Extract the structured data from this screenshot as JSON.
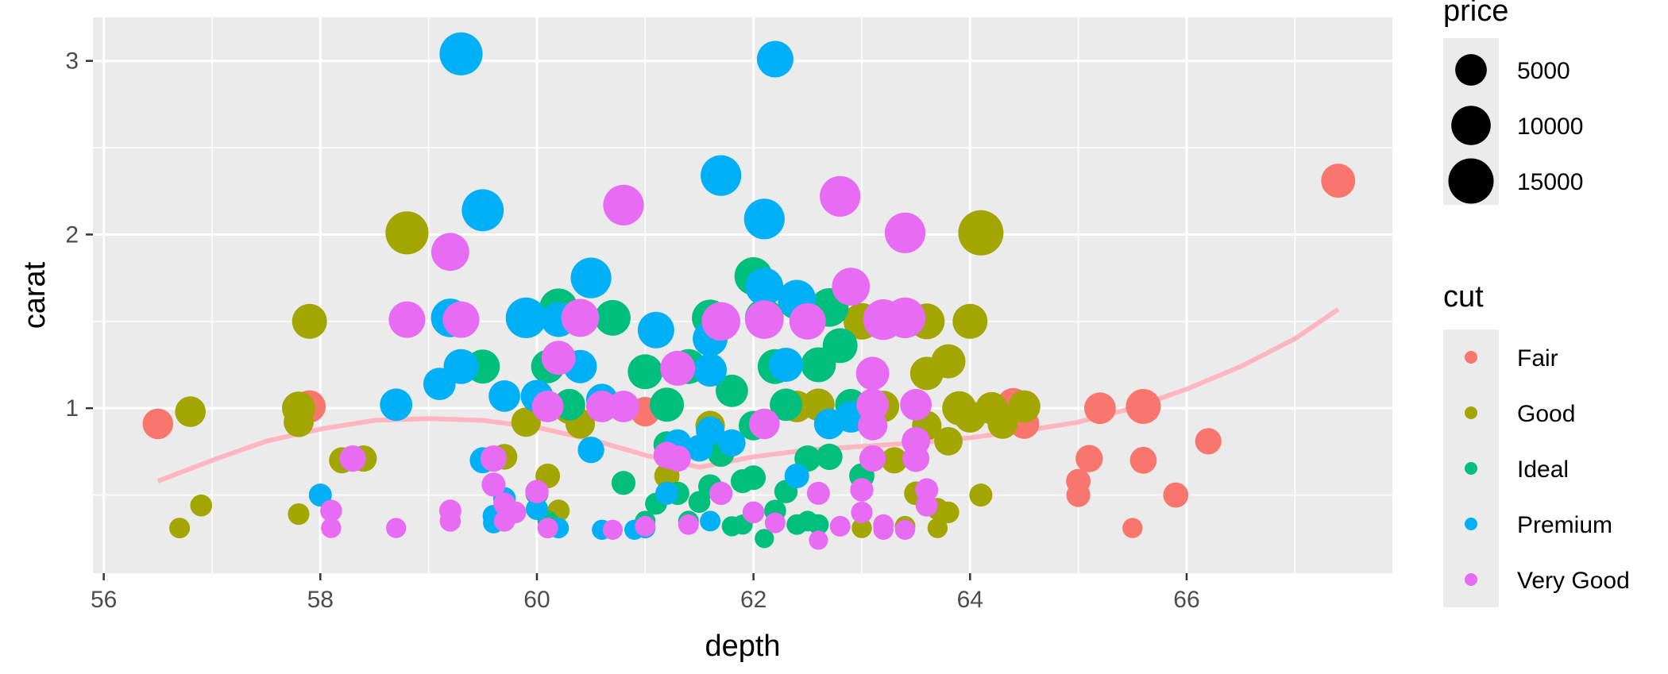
{
  "chart_data": {
    "type": "scatter",
    "xlabel": "depth",
    "ylabel": "carat",
    "xlim": [
      55.9,
      67.9
    ],
    "ylim": [
      0.05,
      3.25
    ],
    "x_ticks": [
      56,
      58,
      60,
      62,
      64,
      66
    ],
    "y_ticks": [
      1,
      2,
      3
    ],
    "grid": true,
    "legend_position": "right",
    "legends": {
      "size": {
        "title": "price",
        "values": [
          5000,
          10000,
          15000
        ]
      },
      "color": {
        "title": "cut",
        "categories": [
          "Fair",
          "Good",
          "Ideal",
          "Premium",
          "Very Good"
        ],
        "colors": [
          "#F8766D",
          "#A3A500",
          "#00BF7D",
          "#00B0F6",
          "#E76BF3"
        ]
      }
    },
    "smooth_line": {
      "color": "#FFB6C1",
      "x": [
        56.5,
        57.0,
        57.5,
        58.0,
        58.5,
        59.0,
        59.5,
        60.0,
        60.5,
        61.0,
        61.5,
        62.0,
        62.5,
        63.0,
        63.5,
        64.0,
        64.5,
        65.0,
        65.5,
        66.0,
        66.5,
        67.0,
        67.4
      ],
      "y": [
        0.58,
        0.7,
        0.81,
        0.88,
        0.93,
        0.94,
        0.93,
        0.89,
        0.82,
        0.73,
        0.66,
        0.72,
        0.76,
        0.78,
        0.8,
        0.83,
        0.87,
        0.92,
        1.0,
        1.11,
        1.24,
        1.4,
        1.57
      ]
    },
    "series": [
      {
        "name": "Fair",
        "points": [
          [
            56.5,
            0.91,
            4500
          ],
          [
            57.9,
            1.01,
            5500
          ],
          [
            61.0,
            0.98,
            4000
          ],
          [
            64.4,
            1.02,
            6000
          ],
          [
            64.5,
            0.91,
            4200
          ],
          [
            65.2,
            1.0,
            5000
          ],
          [
            65.6,
            1.01,
            7000
          ],
          [
            65.1,
            0.71,
            3000
          ],
          [
            65.0,
            0.58,
            2000
          ],
          [
            65.0,
            0.5,
            1800
          ],
          [
            65.6,
            0.7,
            2800
          ],
          [
            65.9,
            0.5,
            2200
          ],
          [
            66.2,
            0.81,
            2600
          ],
          [
            65.5,
            0.31,
            800
          ],
          [
            67.4,
            2.31,
            6500
          ]
        ]
      },
      {
        "name": "Good",
        "points": [
          [
            56.7,
            0.31,
            900
          ],
          [
            56.8,
            0.98,
            4500
          ],
          [
            56.9,
            0.44,
            1200
          ],
          [
            57.8,
            1.0,
            6000
          ],
          [
            57.8,
            0.92,
            4200
          ],
          [
            57.8,
            0.39,
            1100
          ],
          [
            57.9,
            1.5,
            7000
          ],
          [
            58.2,
            0.7,
            2500
          ],
          [
            58.4,
            0.71,
            2600
          ],
          [
            58.8,
            2.01,
            13000
          ],
          [
            59.7,
            0.72,
            2400
          ],
          [
            59.9,
            0.92,
            4000
          ],
          [
            60.0,
            0.51,
            1500
          ],
          [
            60.1,
            0.61,
            2000
          ],
          [
            60.2,
            0.41,
            1300
          ],
          [
            60.3,
            1.0,
            5000
          ],
          [
            60.4,
            0.91,
            4000
          ],
          [
            61.2,
            0.61,
            2200
          ],
          [
            61.6,
            0.9,
            4000
          ],
          [
            62.4,
            1.01,
            5000
          ],
          [
            62.6,
            1.02,
            5500
          ],
          [
            63.0,
            1.5,
            8000
          ],
          [
            63.2,
            1.01,
            5000
          ],
          [
            63.3,
            0.7,
            2600
          ],
          [
            63.4,
            0.32,
            900
          ],
          [
            63.5,
            0.51,
            1700
          ],
          [
            63.6,
            1.5,
            7500
          ],
          [
            63.6,
            1.2,
            6000
          ],
          [
            63.6,
            0.9,
            4000
          ],
          [
            63.7,
            0.42,
            1200
          ],
          [
            63.8,
            1.27,
            6500
          ],
          [
            63.8,
            0.81,
            3500
          ],
          [
            63.8,
            0.4,
            1100
          ],
          [
            63.9,
            1.0,
            6500
          ],
          [
            64.0,
            1.5,
            7000
          ],
          [
            64.0,
            0.95,
            5000
          ],
          [
            64.1,
            2.01,
            15000
          ],
          [
            64.1,
            0.5,
            1500
          ],
          [
            64.2,
            1.0,
            5500
          ],
          [
            64.3,
            0.91,
            4200
          ],
          [
            64.5,
            1.01,
            5500
          ],
          [
            63.7,
            0.31,
            800
          ],
          [
            63.0,
            0.31,
            800
          ],
          [
            63.1,
            0.71,
            2600
          ]
        ]
      },
      {
        "name": "Ideal",
        "points": [
          [
            59.5,
            1.24,
            6500
          ],
          [
            60.2,
            1.58,
            9000
          ],
          [
            60.1,
            1.24,
            6000
          ],
          [
            60.3,
            1.02,
            5000
          ],
          [
            60.7,
            1.52,
            7500
          ],
          [
            60.0,
            0.51,
            1500
          ],
          [
            60.1,
            0.35,
            900
          ],
          [
            61.0,
            1.21,
            7000
          ],
          [
            61.2,
            1.02,
            6500
          ],
          [
            61.3,
            0.51,
            1600
          ],
          [
            61.4,
            0.35,
            900
          ],
          [
            61.5,
            0.46,
            1200
          ],
          [
            61.7,
            0.74,
            2800
          ],
          [
            61.9,
            0.33,
            800
          ],
          [
            62.0,
            1.76,
            9000
          ],
          [
            62.1,
            1.52,
            9500
          ],
          [
            62.2,
            1.24,
            7000
          ],
          [
            62.3,
            1.02,
            5500
          ],
          [
            62.4,
            1.62,
            9000
          ],
          [
            62.5,
            1.55,
            8500
          ],
          [
            62.6,
            1.25,
            7000
          ],
          [
            62.7,
            1.58,
            9500
          ],
          [
            62.8,
            1.36,
            7000
          ],
          [
            62.9,
            1.02,
            5000
          ],
          [
            63.0,
            0.61,
            2200
          ],
          [
            61.6,
            1.52,
            8000
          ],
          [
            61.8,
            1.1,
            5500
          ],
          [
            62.0,
            0.9,
            4000
          ],
          [
            61.6,
            0.55,
            1800
          ],
          [
            62.2,
            0.41,
            1200
          ],
          [
            62.4,
            0.33,
            900
          ],
          [
            62.1,
            0.25,
            600
          ],
          [
            61.0,
            0.35,
            900
          ],
          [
            61.1,
            0.45,
            1200
          ],
          [
            62.5,
            0.35,
            900
          ],
          [
            62.7,
            0.72,
            2600
          ],
          [
            62.0,
            0.6,
            2000
          ],
          [
            61.8,
            0.32,
            800
          ],
          [
            62.5,
            0.71,
            2600
          ],
          [
            60.8,
            0.57,
            1800
          ],
          [
            61.2,
            0.79,
            2800
          ],
          [
            61.4,
            1.24,
            7000
          ],
          [
            61.9,
            0.58,
            1800
          ],
          [
            62.3,
            0.52,
            1600
          ],
          [
            62.6,
            0.33,
            900
          ]
        ]
      },
      {
        "name": "Premium",
        "points": [
          [
            59.3,
            3.04,
            13000
          ],
          [
            62.2,
            3.01,
            8000
          ],
          [
            61.7,
            2.34,
            11000
          ],
          [
            62.1,
            2.09,
            11000
          ],
          [
            59.5,
            2.14,
            12000
          ],
          [
            60.5,
            1.75,
            11000
          ],
          [
            59.9,
            1.52,
            11000
          ],
          [
            59.2,
            1.52,
            9500
          ],
          [
            60.2,
            1.51,
            7000
          ],
          [
            61.1,
            1.45,
            8000
          ],
          [
            59.3,
            1.24,
            7000
          ],
          [
            59.1,
            1.14,
            5500
          ],
          [
            58.7,
            1.02,
            5500
          ],
          [
            60.4,
            1.24,
            6000
          ],
          [
            60.0,
            1.07,
            5500
          ],
          [
            59.7,
            1.07,
            5000
          ],
          [
            60.6,
            1.05,
            5000
          ],
          [
            61.6,
            1.4,
            7000
          ],
          [
            62.1,
            1.7,
            9000
          ],
          [
            62.4,
            1.63,
            9000
          ],
          [
            62.7,
            0.91,
            4500
          ],
          [
            62.9,
            0.95,
            5000
          ],
          [
            61.6,
            1.22,
            6000
          ],
          [
            61.8,
            0.8,
            3000
          ],
          [
            61.3,
            0.8,
            3000
          ],
          [
            60.5,
            0.76,
            2700
          ],
          [
            61.6,
            0.87,
            3500
          ],
          [
            59.5,
            0.7,
            2500
          ],
          [
            58.0,
            0.5,
            1500
          ],
          [
            59.6,
            0.38,
            1200
          ],
          [
            59.7,
            0.48,
            1400
          ],
          [
            60.0,
            0.42,
            1300
          ],
          [
            60.2,
            0.31,
            900
          ],
          [
            60.6,
            0.3,
            800
          ],
          [
            60.9,
            0.3,
            800
          ],
          [
            61.6,
            0.35,
            900
          ],
          [
            61.0,
            0.31,
            900
          ],
          [
            62.4,
            0.61,
            2000
          ],
          [
            61.2,
            0.51,
            1500
          ],
          [
            61.5,
            0.77,
            2800
          ],
          [
            59.6,
            0.34,
            1000
          ],
          [
            62.3,
            1.25,
            6500
          ]
        ]
      },
      {
        "name": "Very Good",
        "points": [
          [
            60.8,
            2.17,
            11000
          ],
          [
            62.8,
            2.22,
            11000
          ],
          [
            63.4,
            2.01,
            11000
          ],
          [
            59.2,
            1.9,
            9000
          ],
          [
            58.8,
            1.51,
            8000
          ],
          [
            59.3,
            1.51,
            8000
          ],
          [
            60.4,
            1.52,
            9000
          ],
          [
            60.2,
            1.29,
            6500
          ],
          [
            61.7,
            1.5,
            9500
          ],
          [
            62.9,
            1.7,
            9000
          ],
          [
            63.2,
            1.51,
            11000
          ],
          [
            63.4,
            1.52,
            11000
          ],
          [
            63.1,
            1.2,
            6000
          ],
          [
            63.1,
            1.02,
            5500
          ],
          [
            63.5,
            1.02,
            5000
          ],
          [
            62.1,
            1.51,
            9500
          ],
          [
            62.5,
            1.5,
            8000
          ],
          [
            61.3,
            1.23,
            7000
          ],
          [
            60.8,
            1.01,
            5000
          ],
          [
            60.6,
            1.01,
            5000
          ],
          [
            60.1,
            1.01,
            5000
          ],
          [
            63.1,
            0.9,
            4000
          ],
          [
            63.5,
            0.81,
            3500
          ],
          [
            63.5,
            0.71,
            2800
          ],
          [
            63.1,
            0.71,
            2700
          ],
          [
            62.1,
            0.91,
            4500
          ],
          [
            61.2,
            0.73,
            2800
          ],
          [
            58.3,
            0.71,
            2600
          ],
          [
            59.6,
            0.71,
            2600
          ],
          [
            59.6,
            0.56,
            1800
          ],
          [
            59.7,
            0.45,
            1300
          ],
          [
            59.8,
            0.4,
            1200
          ],
          [
            60.1,
            0.31,
            900
          ],
          [
            60.0,
            0.52,
            1600
          ],
          [
            60.7,
            0.3,
            800
          ],
          [
            61.0,
            0.32,
            900
          ],
          [
            61.3,
            0.71,
            2600
          ],
          [
            61.7,
            0.51,
            1600
          ],
          [
            62.0,
            0.4,
            1100
          ],
          [
            62.2,
            0.34,
            900
          ],
          [
            62.6,
            0.51,
            1500
          ],
          [
            62.6,
            0.24,
            600
          ],
          [
            63.0,
            0.53,
            1600
          ],
          [
            63.0,
            0.4,
            1100
          ],
          [
            63.2,
            0.33,
            900
          ],
          [
            63.4,
            0.3,
            800
          ],
          [
            63.6,
            0.53,
            1500
          ],
          [
            63.6,
            0.44,
            1300
          ],
          [
            58.1,
            0.41,
            1200
          ],
          [
            58.1,
            0.31,
            800
          ],
          [
            58.7,
            0.31,
            800
          ],
          [
            59.2,
            0.41,
            1300
          ],
          [
            59.2,
            0.35,
            1000
          ],
          [
            59.7,
            0.35,
            1000
          ],
          [
            63.2,
            0.3,
            800
          ],
          [
            62.8,
            0.32,
            900
          ],
          [
            62.0,
            0.4,
            1200
          ],
          [
            61.4,
            0.33,
            900
          ]
        ]
      }
    ]
  }
}
